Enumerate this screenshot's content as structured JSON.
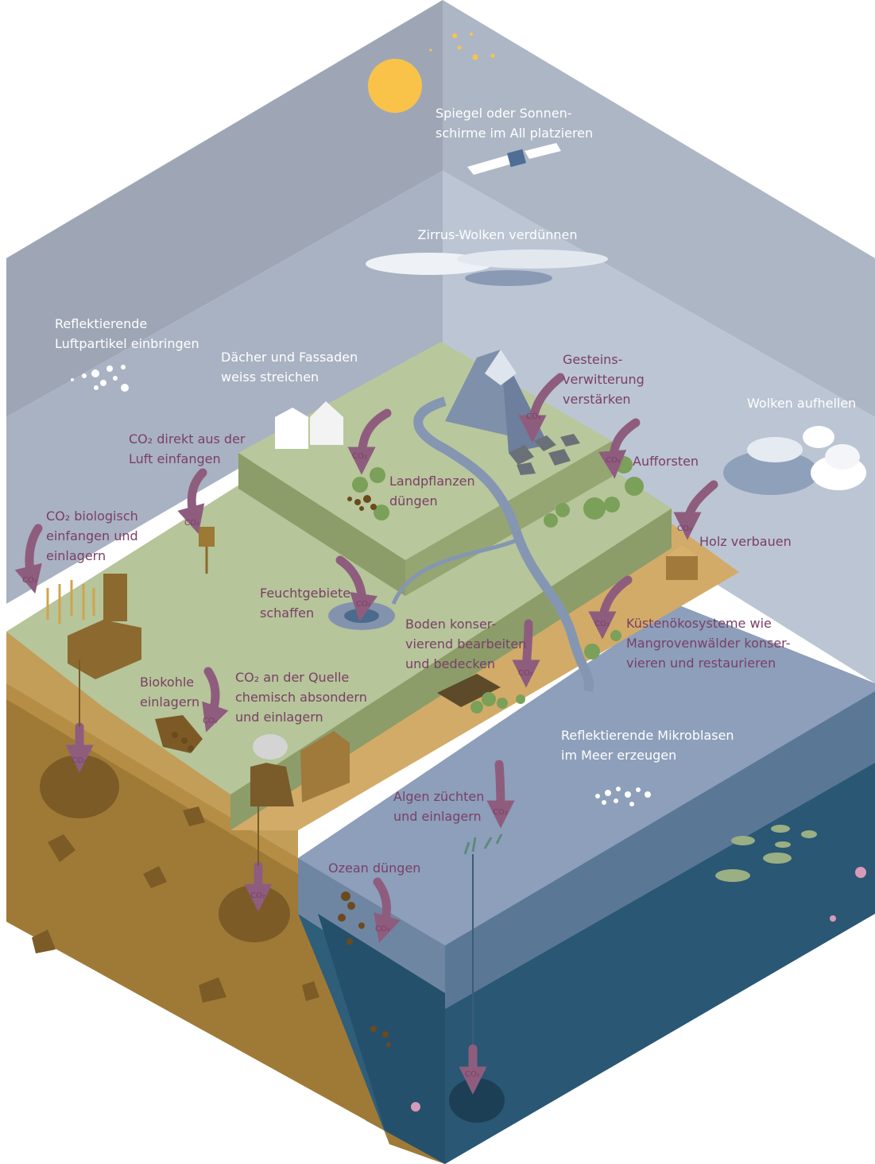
{
  "labels": {
    "space": "Spiegel oder Sonnen-\nschirme im All platzieren",
    "cirrus": "Zirrus-Wolken verdünnen",
    "aerosols": "Reflektierende\nLuftpartikel einbringen",
    "roofs": "Dächer und Fassaden\nweiss streichen",
    "weathering": "Gesteins-\nverwitterung\nverstärken",
    "clouds": "Wolken aufhellen",
    "dac": "CO₂ direkt aus der\nLuft einfangen",
    "fertilize_plants": "Landpflanzen\ndüngen",
    "afforest": "Aufforsten",
    "beccs": "CO₂ biologisch\neinfangen und\neinlagern",
    "wood": "Holz verbauen",
    "wetlands": "Feuchtgebiete\nschaffen",
    "soil": "Boden konser-\nvierend bearbeiten\nund bedecken",
    "coastal": "Küstenökosysteme wie\nMangrovenwälder konser-\nvieren und restaurieren",
    "biochar": "Biokohle\neinlagern",
    "ccs": "CO₂ an der Quelle\nchemisch absondern\nund einlagern",
    "microbubbles": "Reflektierende Mikroblasen\nim Meer erzeugen",
    "algae": "Algen züchten\nund einlagern",
    "ocean_fert": "Ozean düngen"
  },
  "co2_tag": "CO₂",
  "colors": {
    "sky_left": "#9fa7b7",
    "sky_right": "#b7c0cf",
    "land_green": "#b8c79a",
    "land_edge": "#8c9d68",
    "soil_brown": "#a07a3a",
    "sand": "#d3ab68",
    "ocean_surface": "#8fa2bd",
    "ocean_deep": "#23536f",
    "arrow": "#8e5d7e",
    "label_dark": "#7a3f66",
    "sun": "#f9c34a"
  }
}
